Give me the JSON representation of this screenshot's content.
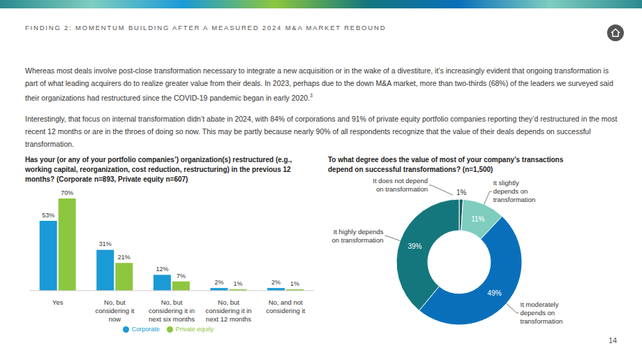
{
  "header": "FINDING 2: MOMENTUM BUILDING AFTER A MEASURED 2024 M&A MARKET REBOUND",
  "paragraphs": [
    {
      "text": "Whereas most deals involve post-close transformation necessary to integrate a new acquisition or in the wake of a divestiture, it’s increasingly evident that ongoing transformation is part of what leading acquirers do to realize greater value from their deals. In 2023, perhaps due to the down M&A market, more than two-thirds (68%) of the leaders we surveyed said their organizations had restructured since the COVID-19 pandemic began in early 2020.",
      "footnote": "3"
    },
    {
      "text": "Interestingly, that focus on internal transformation didn’t abate in 2024, with 84% of corporations and 91% of private equity portfolio companies reporting they’d restructured in the most recent 12 months or are in the throes of doing so now. This may be partly because nearly 90% of all respondents recognize that the value of their deals depends on successful transformation."
    }
  ],
  "page_number": "14",
  "chart_data": [
    {
      "type": "bar",
      "title": "Has your (or any of your portfolio companies’) organization(s) restructured (e.g., working capital, reorganization, cost reduction, restructuring) in the previous 12 months? (Corporate n=893, Private equity n=607)",
      "categories": [
        "Yes",
        "No, but considering it now",
        "No, but considering it in next six months",
        "No, but considering it in next 12 months",
        "No, and not considering it"
      ],
      "series": [
        {
          "name": "Corporate",
          "color": "#1a9ad6",
          "values": [
            53,
            31,
            12,
            2,
            2
          ],
          "value_labels": [
            "53%",
            "31%",
            "12%",
            "2%",
            "2%"
          ]
        },
        {
          "name": "Private equity",
          "color": "#8dc63f",
          "values": [
            70,
            21,
            7,
            1,
            1
          ],
          "value_labels": [
            "70%",
            "21%",
            "7%",
            "1%",
            "1%"
          ]
        }
      ],
      "ylim": [
        0,
        70
      ],
      "tick_labels": "x",
      "data_labels": true,
      "legend": "bottom"
    },
    {
      "type": "pie",
      "title": "To what degree does the value of most of your company’s transactions depend on successful transformations? (n=1,500)",
      "categories": [
        "It does not depend on transformation",
        "It slightly depends on transformation",
        "It moderately depends on transformation",
        "It highly depends on transformation"
      ],
      "values": [
        1,
        11,
        49,
        39
      ],
      "value_labels": [
        "1%",
        "11%",
        "49%",
        "39%"
      ],
      "colors": [
        "#1b5e63",
        "#7fcdbf",
        "#0a6fba",
        "#14777d"
      ],
      "data_labels": true
    }
  ]
}
